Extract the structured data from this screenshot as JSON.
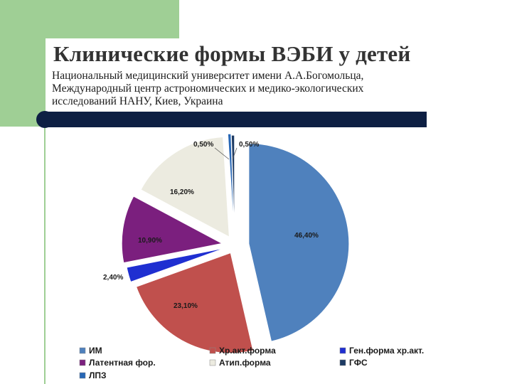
{
  "slide": {
    "title": "Клинические формы ВЭБИ у детей",
    "subtitle_lines": [
      "Национальный  медицинский университет имени А.А.Богомольца,",
      "Международный центр астрономических и медико-экологических",
      "исследований НАНУ,  Киев, Украина"
    ],
    "colors": {
      "green": "#9fcf95",
      "navy": "#0d1f43"
    }
  },
  "chart_data": {
    "type": "pie",
    "title": "",
    "slices": [
      {
        "name": "ИМ",
        "value": 46.4,
        "label": "46,40%",
        "color": "#4f81bd"
      },
      {
        "name": "Хр.акт.форма",
        "value": 23.1,
        "label": "23,10%",
        "color": "#c0504d"
      },
      {
        "name": "Ген.форма хр.акт.",
        "value": 2.4,
        "label": "2,40%",
        "color": "#1f2fd1"
      },
      {
        "name": "Латентная фор.",
        "value": 10.9,
        "label": "10,90%",
        "color": "#7b1f7e"
      },
      {
        "name": "Атип.форма",
        "value": 16.2,
        "label": "16,20%",
        "color": "#ecebe0"
      },
      {
        "name": "ЛПЗ",
        "value": 0.5,
        "label": "0,50%",
        "color": "#2666b5"
      },
      {
        "name": "ГФС",
        "value": 0.5,
        "label": "0,50%",
        "color": "#1c3a63"
      }
    ],
    "legend": {
      "placement": "bottom",
      "order": [
        "ИМ",
        "Хр.акт.форма",
        "Ген.форма хр.акт.",
        "Латентная фор.",
        "Атип.форма",
        "ГФС",
        "ЛПЗ"
      ]
    },
    "exploded": true
  }
}
